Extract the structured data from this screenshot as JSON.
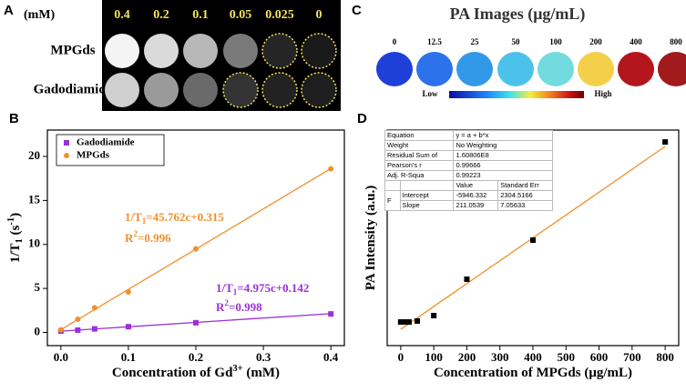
{
  "figure_a": {
    "label": "A",
    "unit": "(mM)",
    "concentrations": [
      0.4,
      0.2,
      0.1,
      0.05,
      0.025,
      0
    ],
    "rows": [
      "MPGds",
      "Gadodiamide"
    ]
  },
  "figure_c": {
    "label": "C",
    "title": "PA Images (μg/mL)",
    "concentrations": [
      0,
      12.5,
      25,
      50,
      100,
      200,
      400,
      800
    ],
    "colors": [
      "#1f3fd9",
      "#2c72ea",
      "#3199e8",
      "#4cc2ea",
      "#72dbe0",
      "#f4d04a",
      "#b3161c",
      "#a11a1c"
    ],
    "scale_low": "Low",
    "scale_high": "High"
  },
  "chart_data": [
    {
      "type": "scatter",
      "panel_label": "B",
      "x_label": [
        {
          "text": "Concentration of Gd"
        },
        {
          "text": "3+",
          "shift": "super"
        },
        {
          "text": " (mM)"
        }
      ],
      "y_label": [
        {
          "text": "1/T"
        },
        {
          "text": "1",
          "shift": "sub"
        },
        {
          "text": " (s"
        },
        {
          "text": "-1",
          "shift": "super"
        },
        {
          "text": ")"
        }
      ],
      "xlim": [
        -0.02,
        0.42
      ],
      "ylim": [
        -1.5,
        23
      ],
      "xticks": [
        {
          "value": 0,
          "label": "0.0"
        },
        0.1,
        0.2,
        0.3,
        0.4
      ],
      "yticks": [
        0,
        5,
        10,
        15,
        20
      ],
      "series": [
        {
          "name": "Gadodiamide",
          "color": "#9b30d9",
          "marker": "square",
          "x": [
            0,
            0.025,
            0.05,
            0.1,
            0.2,
            0.4
          ],
          "values": [
            0.15,
            0.26,
            0.4,
            0.65,
            1.1,
            2.1
          ]
        },
        {
          "name": "MPGds",
          "color": "#f0902a",
          "marker": "circle",
          "x": [
            0,
            0.025,
            0.05,
            0.1,
            0.2,
            0.4
          ],
          "values": [
            0.3,
            1.5,
            2.8,
            4.6,
            9.5,
            18.6
          ]
        }
      ],
      "fit_lines": [
        {
          "color": "#9b30d9",
          "x": [
            0,
            0.4
          ],
          "values": [
            0.142,
            2.132
          ]
        },
        {
          "color": "#f0902a",
          "x": [
            0,
            0.4
          ],
          "values": [
            0.315,
            18.62
          ]
        }
      ],
      "annotations": [
        {
          "color": "#f0902a",
          "parts": [
            {
              "text": "1/T"
            },
            {
              "text": "1",
              "shift": "sub"
            },
            {
              "text": "=45.762c+0.315"
            }
          ]
        },
        {
          "color": "#f0902a",
          "parts": [
            {
              "text": "R"
            },
            {
              "text": "2",
              "shift": "super"
            },
            {
              "text": "=0.996"
            }
          ]
        },
        {
          "color": "#9b30d9",
          "parts": [
            {
              "text": "1/T"
            },
            {
              "text": "1",
              "shift": "sub"
            },
            {
              "text": "=4.975c+0.142"
            }
          ]
        },
        {
          "color": "#9b30d9",
          "parts": [
            {
              "text": "R"
            },
            {
              "text": "2",
              "shift": "super"
            },
            {
              "text": "=0.998"
            }
          ]
        }
      ],
      "legend": "upper left"
    },
    {
      "type": "scatter",
      "panel_label": "D",
      "x_label": [
        {
          "text": "Concentration of MPGds (μg/mL)"
        }
      ],
      "y_label": [
        {
          "text": "PA Intensity (a.u.)"
        }
      ],
      "xlim": [
        -41,
        841
      ],
      "ylim": [
        -21000,
        178000
      ],
      "xticks": [
        0,
        100,
        200,
        300,
        400,
        500,
        600,
        700,
        800
      ],
      "series": [
        {
          "color": "#000000",
          "marker": "square",
          "x": [
            0,
            12.5,
            25,
            50,
            100,
            200,
            400,
            800
          ],
          "values": [
            800,
            800,
            800,
            1700,
            6700,
            40300,
            76400,
            167000
          ]
        }
      ],
      "fit_lines": [
        {
          "color": "#f0902a",
          "x": [
            0,
            800
          ],
          "values": [
            -5946,
            162885
          ]
        }
      ],
      "fit_table": {
        "stats": [
          {
            "label": "Equation",
            "value": "y = a + b*x"
          },
          {
            "label": "Weight",
            "value": "No Weighting"
          },
          {
            "label": "Residual Sum of",
            "value": "1.60806E8"
          },
          {
            "label": "Pearson's r",
            "value": "0.99666"
          },
          {
            "label": "Adj. R-Squa",
            "value": "0.99223"
          }
        ],
        "columns": [
          "Value",
          "Standard Err"
        ],
        "group": "F",
        "params": [
          {
            "name": "Intercept",
            "values": [
              "-5946.332",
              "2304.5166"
            ]
          },
          {
            "name": "Slope",
            "values": [
              "211.0539",
              "7.05633"
            ]
          }
        ]
      }
    }
  ]
}
